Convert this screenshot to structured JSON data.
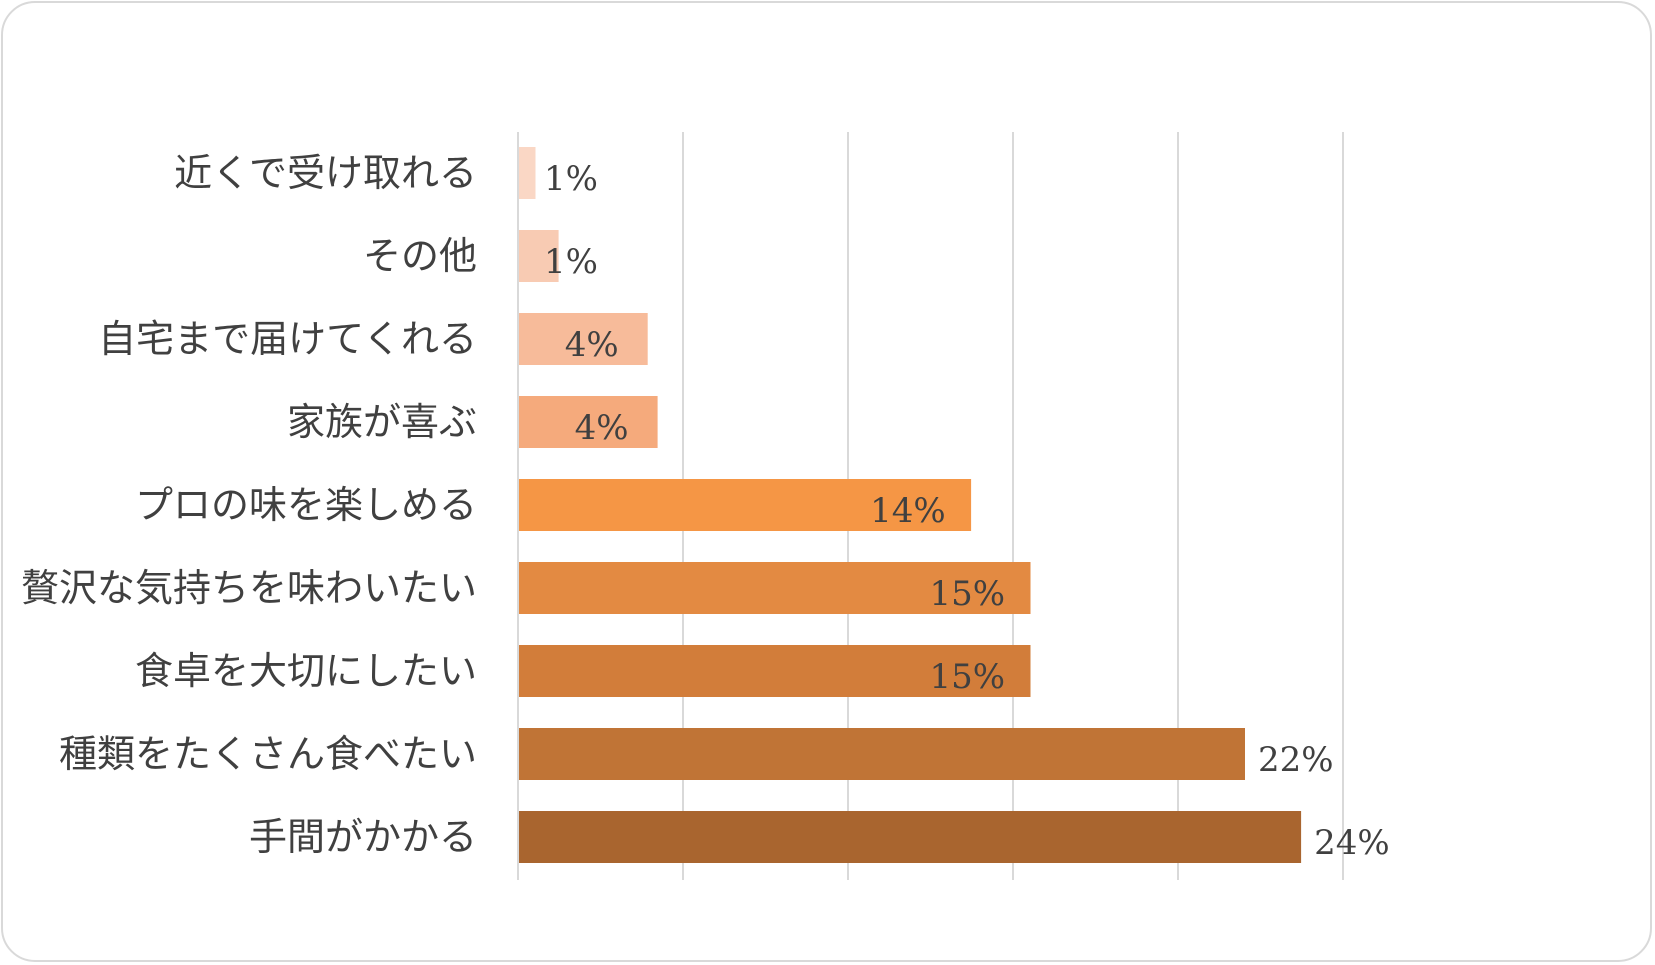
{
  "chart_data": {
    "type": "bar",
    "orientation": "horizontal",
    "title": "",
    "xlabel": "",
    "ylabel": "",
    "xlim": [
      0,
      25
    ],
    "grid": "vertical",
    "legend": "none",
    "categories": [
      "近くで受け取れる",
      "その他",
      "自宅まで届けてくれる",
      "家族が喜ぶ",
      "プロの味を楽しめる",
      "贅沢な気持ちを味わいたい",
      "食卓を大切にしたい",
      "種類をたくさん食べたい",
      "手間がかかる"
    ],
    "values": [
      0.5,
      1.2,
      3.9,
      4.2,
      13.7,
      15.5,
      15.5,
      22.0,
      23.7
    ],
    "data_labels": [
      "1%",
      "1%",
      "4%",
      "4%",
      "14%",
      "15%",
      "15%",
      "22%",
      "24%"
    ],
    "colors": [
      "#fad7c5",
      "#f8cbb3",
      "#f7bb9a",
      "#f5aa7c",
      "#f59645",
      "#e38a42",
      "#d27d3a",
      "#c07436",
      "#a9652f"
    ]
  }
}
